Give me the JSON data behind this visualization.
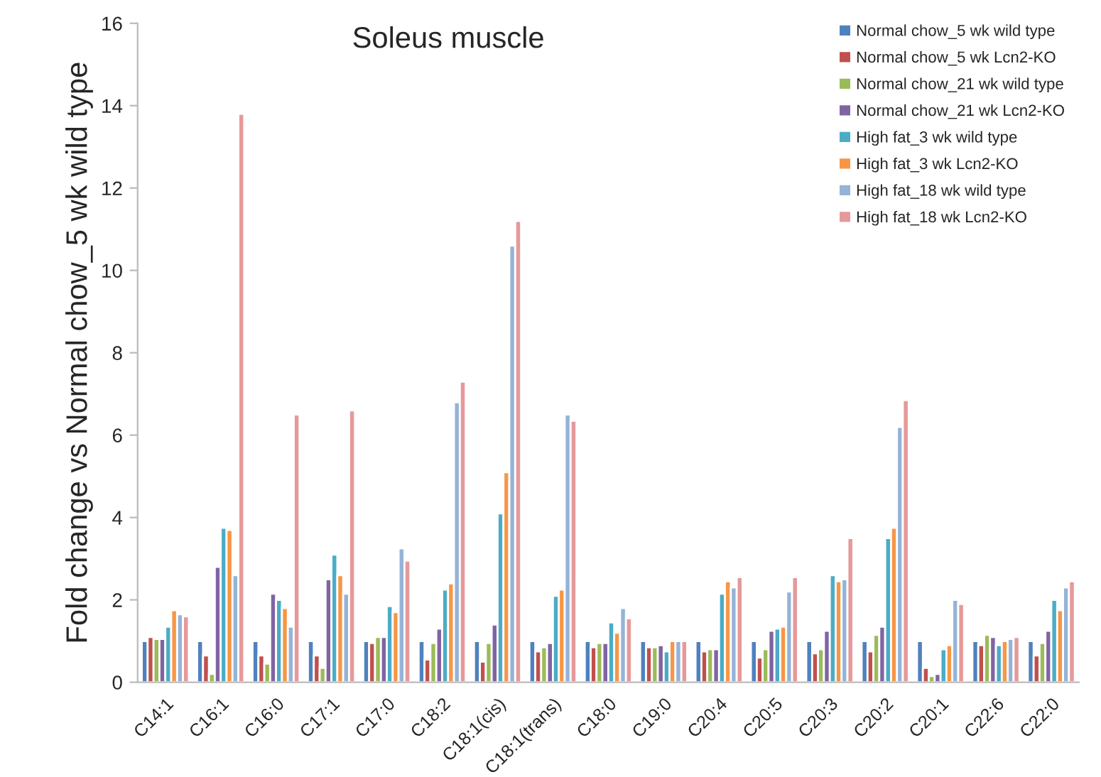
{
  "chart_data": {
    "type": "bar",
    "title": "Soleus muscle",
    "ylabel": "Fold change vs Normal chow_5 wk wild type",
    "categories": [
      "C14:1",
      "C16:1",
      "C16:0",
      "C17:1",
      "C17:0",
      "C18:2",
      "C18:1(cis)",
      "C18:1(trans)",
      "C18:0",
      "C19:0",
      "C20:4",
      "C20:5",
      "C20:3",
      "C20:2",
      "C20:1",
      "C22:6",
      "C22:0"
    ],
    "series": [
      {
        "name": "Normal chow_5 wk wild type",
        "color": "#4f81bd",
        "values": [
          1.0,
          1.0,
          1.0,
          1.0,
          1.0,
          1.0,
          1.0,
          1.0,
          1.0,
          1.0,
          1.0,
          1.0,
          1.0,
          1.0,
          1.0,
          1.0,
          1.0
        ]
      },
      {
        "name": "Normal chow_5 wk Lcn2-KO",
        "color": "#c0504d",
        "values": [
          1.1,
          0.65,
          0.65,
          0.65,
          0.95,
          0.55,
          0.5,
          0.75,
          0.85,
          0.85,
          0.75,
          0.6,
          0.7,
          0.75,
          0.35,
          0.9,
          0.65
        ]
      },
      {
        "name": "Normal chow_21 wk wild type",
        "color": "#9bbb59",
        "values": [
          1.05,
          0.2,
          0.45,
          0.35,
          1.1,
          0.95,
          0.95,
          0.85,
          0.95,
          0.85,
          0.8,
          0.8,
          0.8,
          1.15,
          0.15,
          1.15,
          0.95
        ]
      },
      {
        "name": "Normal chow_21 wk Lcn2-KO",
        "color": "#8064a2",
        "values": [
          1.05,
          2.8,
          2.15,
          2.5,
          1.1,
          1.3,
          1.4,
          0.95,
          0.95,
          0.9,
          0.8,
          1.25,
          1.25,
          1.35,
          0.2,
          1.1,
          1.25
        ]
      },
      {
        "name": "High fat_3 wk wild type",
        "color": "#4bacc6",
        "values": [
          1.35,
          3.75,
          2.0,
          3.1,
          1.85,
          2.25,
          4.1,
          2.1,
          1.45,
          0.75,
          2.15,
          1.3,
          2.6,
          3.5,
          0.8,
          0.9,
          2.0
        ]
      },
      {
        "name": "High fat_3 wk Lcn2-KO",
        "color": "#f79646",
        "values": [
          1.75,
          3.7,
          1.8,
          2.6,
          1.7,
          2.4,
          5.1,
          2.25,
          1.2,
          1.0,
          2.45,
          1.35,
          2.45,
          3.75,
          0.9,
          1.0,
          1.75
        ]
      },
      {
        "name": "High fat_18 wk wild type",
        "color": "#95b3d7",
        "values": [
          1.65,
          2.6,
          1.35,
          2.15,
          3.25,
          6.8,
          10.6,
          6.5,
          1.8,
          1.0,
          2.3,
          2.2,
          2.5,
          6.2,
          2.0,
          1.05,
          2.3
        ]
      },
      {
        "name": "High fat_18 wk Lcn2-KO",
        "color": "#e6999a",
        "values": [
          1.6,
          13.8,
          6.5,
          6.6,
          2.95,
          7.3,
          11.2,
          6.35,
          1.55,
          1.0,
          2.55,
          2.55,
          3.5,
          6.85,
          1.9,
          1.1,
          2.45
        ]
      }
    ],
    "ylim": [
      0,
      16
    ],
    "yticks": [
      0,
      2,
      4,
      6,
      8,
      10,
      12,
      14,
      16
    ],
    "grid": false,
    "legend": "top right"
  }
}
